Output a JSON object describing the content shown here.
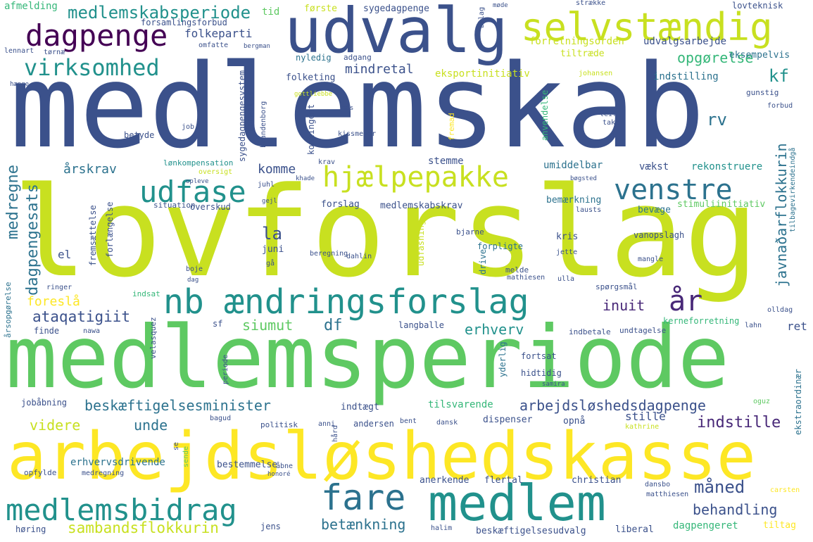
{
  "colors": {
    "background": "#ffffff",
    "palette": [
      "#3b518b",
      "#21918c",
      "#2c728e",
      "#5ec962",
      "#c8e020",
      "#fde725",
      "#440154",
      "#482878",
      "#35b779"
    ]
  },
  "words": {
    "medlemskab": "medlemskab",
    "lovforslag": "lovforslag",
    "medlemsperiode": "medlemsperiode",
    "arbejdsloshedskasse": "arbejdsløshedskasse",
    "udvalg": "udvalg",
    "selvstandig": "selvstændig",
    "dagpenge": "dagpenge",
    "aendringsforslag": "ændringsforslag",
    "medlem": "medlem",
    "medlemsbidrag": "medlemsbidrag",
    "fare": "fare",
    "hjaelpepakke": "hjælpepakke",
    "udfase": "udfase",
    "venstre": "venstre",
    "virksomhed": "virksomhed",
    "medlemskabsperiode": "medlemskabsperiode",
    "nb": "nb",
    "aar": "år",
    "beskaeftigelsesminister": "beskæftigelsesminister",
    "arbejdsloshedsdagpenge": "arbejdsløshedsdagpenge",
    "sambandsflokkurin": "sambandsflokkurin",
    "behandling": "behandling",
    "maaned": "måned",
    "betaenkning": "betænkning",
    "indstille": "indstille",
    "erhverv": "erhverv",
    "ataqatigiit": "ataqatigiit",
    "siumut": "siumut",
    "df": "df",
    "inuit": "inuit",
    "foresla": "foreslå",
    "la": "la",
    "rv": "rv",
    "kf": "kf",
    "arskrav": "årskrav",
    "komme": "komme",
    "mindretal": "mindretal",
    "opgorelse": "opgørelse",
    "javnadarflokkurin": "javnaðarflokkurin",
    "dagpengesats": "dagpengesats",
    "medregne": "medregne",
    "unde": "unde",
    "videre": "videre",
    "folkeparti": "folkeparti",
    "tid": "tid",
    "forste": "første",
    "sygedagpenge": "sygedagpenge",
    "strakke": "strække",
    "afmelding": "afmelding",
    "forsamlingsforbud": "forsamlingsforbud",
    "forretningsorden": "forretningsorden",
    "udvalgsarbejde": "udvalgsarbejde",
    "tiltraede": "tiltræde",
    "eksempelvis": "eksempelvis",
    "eksportinitiativ": "eksportinitiativ",
    "nyledig": "nyledig",
    "adgang": "adgang",
    "folketing": "folketing",
    "indstilling": "indstilling",
    "gunstig": "gunstig",
    "lovteknisk": "lovteknisk",
    "johansen": "johansen",
    "forbud": "forbud",
    "leif": "leif",
    "takt": "takt",
    "lennart": "lennart",
    "torne": "tørnæ",
    "omfatte": "omfatte",
    "bergman": "bergman",
    "hange": "hænge",
    "gottliebbe": "gottliebbe",
    "nas": "nas",
    "fremad": "fremad",
    "kissmeyer": "kissmeyer",
    "betyde": "betyde",
    "job": "job",
    "kontingent": "kontingent",
    "sygedagpengesystem": "sygedagpengesystem",
    "foreslaas": "foreslås",
    "brandenborg": "brandenborg",
    "anvendelse": "anvendelse",
    "lonkompensation": "lønkompensation",
    "oversigt": "oversigt",
    "krav": "krav",
    "stemme": "stemme",
    "umiddelbar": "umiddelbar",
    "vaekst": "vækst",
    "rekonstruere": "rekonstruere",
    "opleve": "opleve",
    "juhl": "juhl",
    "khade": "khade",
    "situation": "situation",
    "overskud": "overskud",
    "forslag": "forslag",
    "medlemskabskrav": "medlemskabskrav",
    "bemaerkning": "bemærkning",
    "stimuliinitiativ": "stimuliinitiativ",
    "bevaege": "bevæge",
    "lausts": "lausts",
    "fremsaettelse": "fremsættelse",
    "forlaengelse": "forlængelse",
    "juni": "juni",
    "ga": "gå",
    "beregning": "beregning",
    "dahlin": "dahlin",
    "udfasning": "udfasning",
    "bjarne": "bjarne",
    "forpligte": "forpligte",
    "kris": "kris",
    "vanopslagh": "vanopslagh",
    "jette": "jette",
    "mangle": "mangle",
    "tilbagevirkendeindga": "tilbagevirkendeindgå",
    "boje": "boje",
    "dag": "dag",
    "ringer": "ringer",
    "drive": "drive",
    "melde": "melde",
    "mathiesen": "mathiesen",
    "ulla": "ulla",
    "sporgsmaal": "spørgsmål",
    "el": "el",
    "indsat": "indsat",
    "arsopgorelse": "årsopgørelse",
    "finde": "finde",
    "nawa": "nawa",
    "velasquez": "velasquez",
    "sf": "sf",
    "langballe": "langballe",
    "indbetale": "indbetale",
    "undtagelse": "undtagelse",
    "kerneforretning": "kerneforretning",
    "olldag": "olldag",
    "lahn": "lahn",
    "ret": "ret",
    "fortsat": "fortsat",
    "yderlig": "yderlig",
    "hidtidig": "hidtidig",
    "samira": "samira",
    "ekstraordinaer": "ekstraordinær",
    "periode": "periode",
    "jobaabning": "jobåbning",
    "indtaegt": "indtægt",
    "tilsvarende": "tilsvarende",
    "oguz": "oguz",
    "bagud": "bagud",
    "politisk": "politisk",
    "anni": "anni",
    "andersen": "andersen",
    "bent": "bent",
    "dansk": "dansk",
    "dispenser": "dispenser",
    "opnaa": "opnå",
    "stille": "stille",
    "kathrine": "kathrine",
    "hard": "hård",
    "sende": "sende",
    "erhvervsdrivende": "erhvervsdrivende",
    "opfylde": "opfylde",
    "medregning": "medregning",
    "bestemmelse": "bestemmelse",
    "aabne": "åbne",
    "honore": "honoré",
    "anerkende": "anerkende",
    "flertal": "flertal",
    "christian": "christian",
    "dansbo": "dansbo",
    "matthiesen": "matthiesen",
    "carsten": "carsten",
    "horing": "høring",
    "jens": "jens",
    "halim": "halim",
    "beskaeftigelsesudvalg": "beskæftigelsesudvalg",
    "liberal": "liberal",
    "dagpengeret": "dagpengeret",
    "tiltag": "tiltag",
    "se": "se",
    "mode": "møde",
    "bilag": "bilag",
    "bogsted": "bøgsted",
    "gejl": "gejl"
  }
}
